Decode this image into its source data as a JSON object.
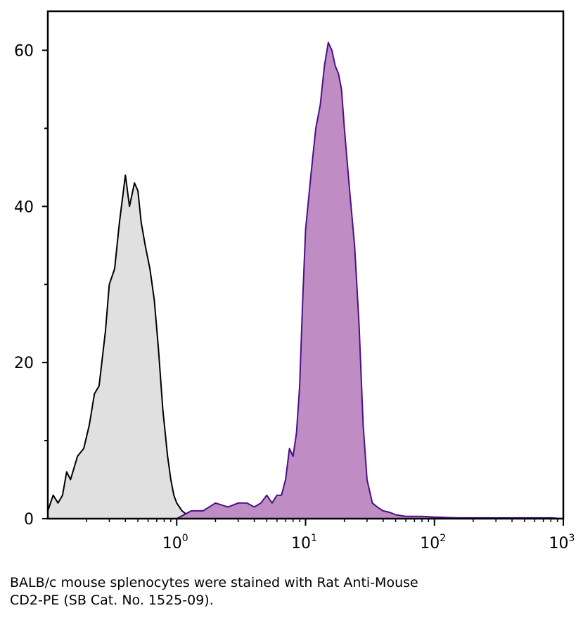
{
  "chart_data": {
    "type": "area",
    "title": "",
    "xlabel": "",
    "ylabel": "",
    "xscale": "log",
    "xlim": [
      0.1,
      1000
    ],
    "ylim": [
      0,
      65
    ],
    "yticks": [
      0,
      20,
      40,
      60
    ],
    "xticks": [
      {
        "value": 1,
        "base": "10",
        "exp": "0"
      },
      {
        "value": 10,
        "base": "10",
        "exp": "1"
      },
      {
        "value": 100,
        "base": "10",
        "exp": "2"
      },
      {
        "value": 1000,
        "base": "10",
        "exp": "3"
      }
    ],
    "grid": false,
    "legend": "none",
    "series": [
      {
        "fill": "#e0e0e0",
        "stroke": "#000000",
        "x": [
          0.1,
          0.11,
          0.12,
          0.13,
          0.14,
          0.15,
          0.17,
          0.19,
          0.21,
          0.23,
          0.25,
          0.28,
          0.3,
          0.33,
          0.36,
          0.4,
          0.43,
          0.47,
          0.5,
          0.53,
          0.57,
          0.62,
          0.67,
          0.72,
          0.78,
          0.85,
          0.9,
          0.95,
          1.0,
          1.1,
          1.2,
          1.35,
          1.5,
          1.7,
          2.0
        ],
        "y": [
          1,
          3,
          2,
          3,
          6,
          5,
          8,
          9,
          12,
          16,
          17,
          24,
          30,
          32,
          38,
          44,
          40,
          43,
          42,
          38,
          35,
          32,
          28,
          22,
          14,
          8,
          5,
          3,
          2,
          1,
          0.5,
          1,
          0.5,
          0.2,
          0
        ]
      },
      {
        "fill": "#c08cc4",
        "stroke": "#4b0f88",
        "x": [
          1.0,
          1.3,
          1.6,
          2.0,
          2.5,
          3.0,
          3.5,
          4.0,
          4.5,
          5.0,
          5.5,
          6.0,
          6.5,
          7.0,
          7.5,
          8.0,
          8.5,
          9.0,
          9.5,
          10,
          11,
          12,
          13,
          14,
          15,
          16,
          17,
          18,
          19,
          20,
          22,
          24,
          26,
          28,
          30,
          33,
          36,
          40,
          45,
          50,
          60,
          80,
          100,
          150,
          200,
          300,
          500,
          800,
          1000
        ],
        "y": [
          0,
          1,
          1,
          2,
          1.5,
          2,
          2,
          1.5,
          2,
          3,
          2,
          3,
          3,
          5,
          9,
          8,
          11,
          17,
          28,
          37,
          44,
          50,
          53,
          58,
          61,
          60,
          58,
          57,
          55,
          50,
          42,
          35,
          25,
          12,
          5,
          2,
          1.5,
          1,
          0.8,
          0.5,
          0.3,
          0.3,
          0.2,
          0.1,
          0.1,
          0.1,
          0.1,
          0.1,
          0
        ]
      }
    ]
  },
  "caption": {
    "line1": "BALB/c mouse splenocytes were stained with Rat Anti-Mouse",
    "line2": "CD2-PE (SB Cat. No. 1525-09)."
  }
}
